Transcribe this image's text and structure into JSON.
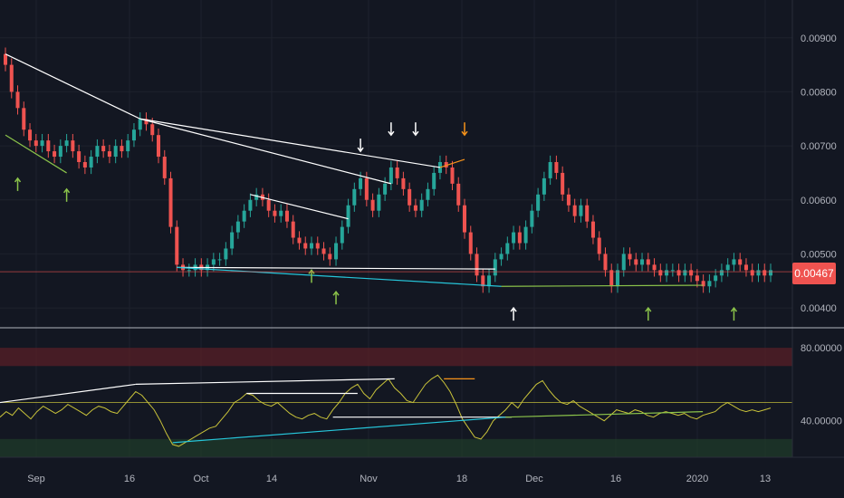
{
  "chart_data": [
    {
      "type": "candlestick",
      "price_axis": {
        "ticks": [
          "0.00900",
          "0.00800",
          "0.00700",
          "0.00600",
          "0.00500",
          "0.00400"
        ],
        "range": [
          0.0037,
          0.0097
        ]
      },
      "last_price": "0.00467",
      "closes": [
        0.0085,
        0.008,
        0.0077,
        0.0073,
        0.0071,
        0.007,
        0.0071,
        0.0069,
        0.0068,
        0.007,
        0.0071,
        0.0069,
        0.0067,
        0.0066,
        0.0068,
        0.007,
        0.0069,
        0.0068,
        0.007,
        0.0069,
        0.0071,
        0.0073,
        0.0075,
        0.0074,
        0.0072,
        0.0068,
        0.0064,
        0.0055,
        0.0048,
        0.0047,
        0.0047,
        0.0048,
        0.0047,
        0.0048,
        0.0049,
        0.0049,
        0.0051,
        0.0054,
        0.0056,
        0.0058,
        0.006,
        0.0061,
        0.006,
        0.0058,
        0.0057,
        0.0058,
        0.0056,
        0.0053,
        0.0052,
        0.0051,
        0.0052,
        0.0051,
        0.005,
        0.0049,
        0.0052,
        0.0055,
        0.0059,
        0.0062,
        0.0064,
        0.006,
        0.0058,
        0.0061,
        0.0063,
        0.0066,
        0.0064,
        0.0062,
        0.0059,
        0.0058,
        0.006,
        0.0062,
        0.0065,
        0.0067,
        0.0066,
        0.0063,
        0.0059,
        0.0054,
        0.005,
        0.0046,
        0.0044,
        0.0046,
        0.0049,
        0.005,
        0.0052,
        0.0054,
        0.0052,
        0.0055,
        0.0058,
        0.0061,
        0.0064,
        0.0067,
        0.0065,
        0.0061,
        0.0059,
        0.0057,
        0.0059,
        0.0056,
        0.0053,
        0.005,
        0.0047,
        0.0044,
        0.0047,
        0.005,
        0.0049,
        0.0048,
        0.0049,
        0.0048,
        0.0047,
        0.0046,
        0.0047,
        0.0047,
        0.0046,
        0.0047,
        0.0046,
        0.0045,
        0.0044,
        0.0045,
        0.0046,
        0.0047,
        0.0048,
        0.0049,
        0.0048,
        0.0047,
        0.0046,
        0.0047,
        0.0046,
        0.0047
      ]
    },
    {
      "type": "line",
      "y_axis": {
        "ticks": [
          "80.00000",
          "40.00000"
        ],
        "range": [
          20,
          88
        ]
      },
      "values": [
        42,
        45,
        43,
        47,
        44,
        41,
        45,
        48,
        46,
        44,
        46,
        49,
        47,
        45,
        43,
        46,
        48,
        47,
        45,
        44,
        48,
        52,
        56,
        54,
        50,
        46,
        40,
        33,
        27,
        26,
        28,
        30,
        32,
        34,
        36,
        37,
        41,
        45,
        50,
        52,
        55,
        54,
        51,
        49,
        48,
        50,
        47,
        44,
        42,
        41,
        43,
        44,
        42,
        41,
        46,
        50,
        55,
        58,
        60,
        55,
        52,
        57,
        60,
        63,
        58,
        55,
        51,
        50,
        55,
        60,
        63,
        65,
        61,
        56,
        49,
        41,
        36,
        31,
        30,
        34,
        40,
        43,
        46,
        50,
        47,
        52,
        56,
        60,
        62,
        57,
        53,
        50,
        49,
        51,
        48,
        46,
        44,
        42,
        40,
        43,
        46,
        45,
        44,
        46,
        45,
        43,
        42,
        44,
        45,
        44,
        43,
        44,
        42,
        41,
        43,
        44,
        45,
        48,
        50,
        48,
        46,
        45,
        46,
        45,
        46,
        47
      ],
      "overbought_band": [
        70,
        80
      ],
      "oversold_band": [
        20,
        30
      ]
    }
  ],
  "time_axis": {
    "labels": [
      "Sep",
      "16",
      "Oct",
      "14",
      "Nov",
      "18",
      "Dec",
      "16",
      "2020",
      "13"
    ]
  },
  "colors": {
    "background": "#131722",
    "up": "#26a69a",
    "down": "#ef5350",
    "grid": "#1e222d",
    "rsi": "#c9c33a",
    "annotation": "#ffffff",
    "highlight": "#f7931a",
    "bull_div": "#8bc34a",
    "teal_trend": "#26c6da"
  }
}
